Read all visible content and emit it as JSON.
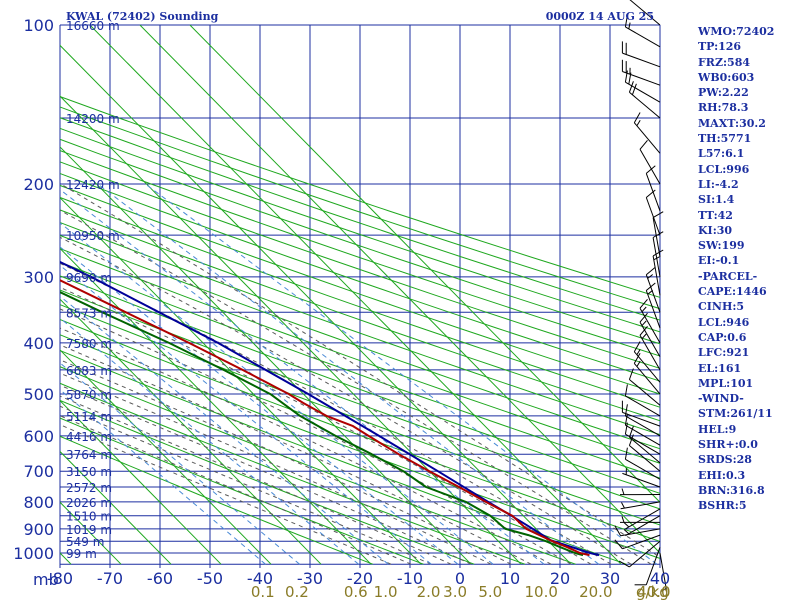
{
  "header": {
    "station": "KWAL (72402) Sounding",
    "datetime": "0000Z 14 AUG 25"
  },
  "colors": {
    "axis": "#1c2fa0",
    "isotherm": "#1fa81f",
    "dry_adiabat": "#1fa81f",
    "moist_adiabat": "#5a5a5a",
    "mixing_ratio": "#4a8ad6",
    "temperature": "#b00000",
    "dewpoint": "#006400",
    "parcel": "#000099",
    "wind": "#000000",
    "mixing_label": "#8a7c28"
  },
  "chart_data": {
    "type": "line",
    "subtype": "skew-t log-p sounding",
    "title": "KWAL (72402) Sounding",
    "date": "0000Z 14 AUG 25",
    "pressure_unit": "mb",
    "pressure_ticks": [
      100,
      200,
      300,
      400,
      500,
      600,
      700,
      800,
      900,
      1000
    ],
    "pressure_range": [
      1000,
      100
    ],
    "temperature_ticks": [
      -80,
      -70,
      -60,
      -50,
      -40,
      -30,
      -20,
      -10,
      0,
      10,
      20,
      30,
      40
    ],
    "mixing_ratio_unit": "g/kg",
    "mixing_ratio_labels": [
      {
        "text": "0.1",
        "value": 0.1
      },
      {
        "text": "0.2",
        "value": 0.2
      },
      {
        "text": "0.6",
        "value": 0.6
      },
      {
        "text": "1.0",
        "value": 1.0
      },
      {
        "text": "2.0",
        "value": 2.0
      },
      {
        "text": "3.0",
        "value": 3.0
      },
      {
        "text": "5.0",
        "value": 5.0
      },
      {
        "text": "10.0",
        "value": 10.0
      },
      {
        "text": "20.0",
        "value": 20.0
      },
      {
        "text": "40.0",
        "value": 40.0
      }
    ],
    "height_labels": [
      {
        "p": 100,
        "text": "16660 m"
      },
      {
        "p": 150,
        "text": "14200 m"
      },
      {
        "p": 200,
        "text": "12420 m"
      },
      {
        "p": 250,
        "text": "10950 m"
      },
      {
        "p": 300,
        "text": "9690 m"
      },
      {
        "p": 350,
        "text": "8573 m"
      },
      {
        "p": 400,
        "text": "7580 m"
      },
      {
        "p": 450,
        "text": "6683 m"
      },
      {
        "p": 500,
        "text": "5870 m"
      },
      {
        "p": 550,
        "text": "5114 m"
      },
      {
        "p": 600,
        "text": "4416 m"
      },
      {
        "p": 650,
        "text": "3764 m"
      },
      {
        "p": 700,
        "text": "3150 m"
      },
      {
        "p": 750,
        "text": "2572 m"
      },
      {
        "p": 800,
        "text": "2026 m"
      },
      {
        "p": 850,
        "text": "1510 m"
      },
      {
        "p": 900,
        "text": "1019 m"
      },
      {
        "p": 950,
        "text": "549 m"
      },
      {
        "p": 1000,
        "text": "99 m"
      }
    ],
    "temperature_profile": [
      {
        "p": 1009,
        "t": 25.5
      },
      {
        "p": 1000,
        "t": 24.0
      },
      {
        "p": 975,
        "t": 22.6
      },
      {
        "p": 950,
        "t": 20.8
      },
      {
        "p": 925,
        "t": 19.4
      },
      {
        "p": 900,
        "t": 18.0
      },
      {
        "p": 850,
        "t": 17.8
      },
      {
        "p": 800,
        "t": 15.2
      },
      {
        "p": 750,
        "t": 12.8
      },
      {
        "p": 700,
        "t": 10.0
      },
      {
        "p": 650,
        "t": 7.2
      },
      {
        "p": 600,
        "t": 4.8
      },
      {
        "p": 575,
        "t": 3.6
      },
      {
        "p": 550,
        "t": 0.3
      },
      {
        "p": 520,
        "t": -1.8
      },
      {
        "p": 500,
        "t": -2.9
      },
      {
        "p": 450,
        "t": -7.4
      },
      {
        "p": 400,
        "t": -12.8
      },
      {
        "p": 350,
        "t": -19.4
      },
      {
        "p": 300,
        "t": -27.0
      },
      {
        "p": 250,
        "t": -36.4
      },
      {
        "p": 200,
        "t": -48.2
      },
      {
        "p": 175,
        "t": -55.5
      },
      {
        "p": 150,
        "t": -63.4
      },
      {
        "p": 125,
        "t": -69.6
      },
      {
        "p": 100,
        "t": -71.9
      }
    ],
    "dewpoint_profile": [
      {
        "p": 1009,
        "td": 24.2
      },
      {
        "p": 1000,
        "td": 23.0
      },
      {
        "p": 975,
        "td": 21.2
      },
      {
        "p": 950,
        "td": 19.5
      },
      {
        "p": 925,
        "td": 17.2
      },
      {
        "p": 900,
        "td": 13.8
      },
      {
        "p": 850,
        "td": 13.4
      },
      {
        "p": 800,
        "td": 11.2
      },
      {
        "p": 750,
        "td": 6.2
      },
      {
        "p": 700,
        "td": 4.8
      },
      {
        "p": 650,
        "td": 1.8
      },
      {
        "p": 600,
        "td": -1.8
      },
      {
        "p": 550,
        "td": -5.0
      },
      {
        "p": 500,
        "td": -6.6
      },
      {
        "p": 450,
        "td": -11.2
      },
      {
        "p": 400,
        "td": -16.8
      },
      {
        "p": 350,
        "td": -24.1
      },
      {
        "p": 300,
        "td": -32.0
      },
      {
        "p": 250,
        "td": -41.3
      },
      {
        "p": 200,
        "td": -54.5
      },
      {
        "p": 175,
        "td": -61.8
      },
      {
        "p": 150,
        "td": -68.3
      },
      {
        "p": 125,
        "td": -74.8
      },
      {
        "p": 100,
        "td": -84.8
      }
    ],
    "parcel_profile": [
      {
        "p": 1009,
        "t": 27.4
      },
      {
        "p": 1000,
        "t": 26.0
      },
      {
        "p": 946,
        "t": 20.7
      },
      {
        "p": 900,
        "t": 19.3
      },
      {
        "p": 850,
        "t": 17.6
      },
      {
        "p": 800,
        "t": 15.7
      },
      {
        "p": 700,
        "t": 11.7
      },
      {
        "p": 600,
        "t": 6.9
      },
      {
        "p": 500,
        "t": 1.0
      },
      {
        "p": 400,
        "t": -7.0
      },
      {
        "p": 300,
        "t": -19.4
      },
      {
        "p": 250,
        "t": -28.6
      },
      {
        "p": 200,
        "t": -40.9
      },
      {
        "p": 161,
        "t": -53.2
      },
      {
        "p": 130,
        "t": -66.5
      },
      {
        "p": 100,
        "t": -84.5
      }
    ],
    "wind_profile": [
      {
        "p": 1000,
        "dir": 170,
        "spd": 5
      },
      {
        "p": 975,
        "dir": 200,
        "spd": 10
      },
      {
        "p": 950,
        "dir": 230,
        "spd": 10
      },
      {
        "p": 925,
        "dir": 250,
        "spd": 10
      },
      {
        "p": 900,
        "dir": 260,
        "spd": 10
      },
      {
        "p": 875,
        "dir": 270,
        "spd": 5
      },
      {
        "p": 850,
        "dir": 240,
        "spd": 5
      },
      {
        "p": 825,
        "dir": 240,
        "spd": 5
      },
      {
        "p": 800,
        "dir": 260,
        "spd": 5
      },
      {
        "p": 775,
        "dir": 270,
        "spd": 5
      },
      {
        "p": 750,
        "dir": 290,
        "spd": 5
      },
      {
        "p": 725,
        "dir": 300,
        "spd": 10
      },
      {
        "p": 700,
        "dir": 310,
        "spd": 10
      },
      {
        "p": 675,
        "dir": 310,
        "spd": 10
      },
      {
        "p": 650,
        "dir": 300,
        "spd": 10
      },
      {
        "p": 625,
        "dir": 300,
        "spd": 10
      },
      {
        "p": 600,
        "dir": 300,
        "spd": 10
      },
      {
        "p": 575,
        "dir": 290,
        "spd": 10
      },
      {
        "p": 550,
        "dir": 300,
        "spd": 10
      },
      {
        "p": 525,
        "dir": 310,
        "spd": 10
      },
      {
        "p": 500,
        "dir": 320,
        "spd": 15
      },
      {
        "p": 475,
        "dir": 320,
        "spd": 15
      },
      {
        "p": 450,
        "dir": 330,
        "spd": 15
      },
      {
        "p": 425,
        "dir": 330,
        "spd": 15
      },
      {
        "p": 400,
        "dir": 330,
        "spd": 15
      },
      {
        "p": 375,
        "dir": 340,
        "spd": 15
      },
      {
        "p": 350,
        "dir": 340,
        "spd": 15
      },
      {
        "p": 325,
        "dir": 350,
        "spd": 15
      },
      {
        "p": 300,
        "dir": 350,
        "spd": 10
      },
      {
        "p": 275,
        "dir": 350,
        "spd": 10
      },
      {
        "p": 250,
        "dir": 340,
        "spd": 10
      },
      {
        "p": 225,
        "dir": 340,
        "spd": 10
      },
      {
        "p": 200,
        "dir": 330,
        "spd": 10
      },
      {
        "p": 175,
        "dir": 320,
        "spd": 15
      },
      {
        "p": 150,
        "dir": 310,
        "spd": 20
      },
      {
        "p": 140,
        "dir": 300,
        "spd": 20
      },
      {
        "p": 130,
        "dir": 290,
        "spd": 25
      },
      {
        "p": 120,
        "dir": 290,
        "spd": 20
      },
      {
        "p": 110,
        "dir": 300,
        "spd": 15
      },
      {
        "p": 100,
        "dir": 310,
        "spd": 10
      }
    ]
  },
  "indices": [
    "WMO:72402",
    "TP:126",
    "FRZ:584",
    "WB0:603",
    "PW:2.22",
    "RH:78.3",
    "MAXT:30.2",
    "TH:5771",
    "L57:6.1",
    "LCL:996",
    "LI:-4.2",
    "SI:1.4",
    "TT:42",
    "KI:30",
    "SW:199",
    "EI:-0.1",
    "-PARCEL-",
    "CAPE:1446",
    "CINH:5",
    "LCL:946",
    "CAP:0.6",
    "LFC:921",
    "EL:161",
    "MPL:101",
    "-WIND-",
    "STM:261/11",
    "HEL:9",
    "SHR+:0.0",
    "SRDS:28",
    "EHI:0.3",
    "BRN:316.8",
    "BSHR:5"
  ]
}
